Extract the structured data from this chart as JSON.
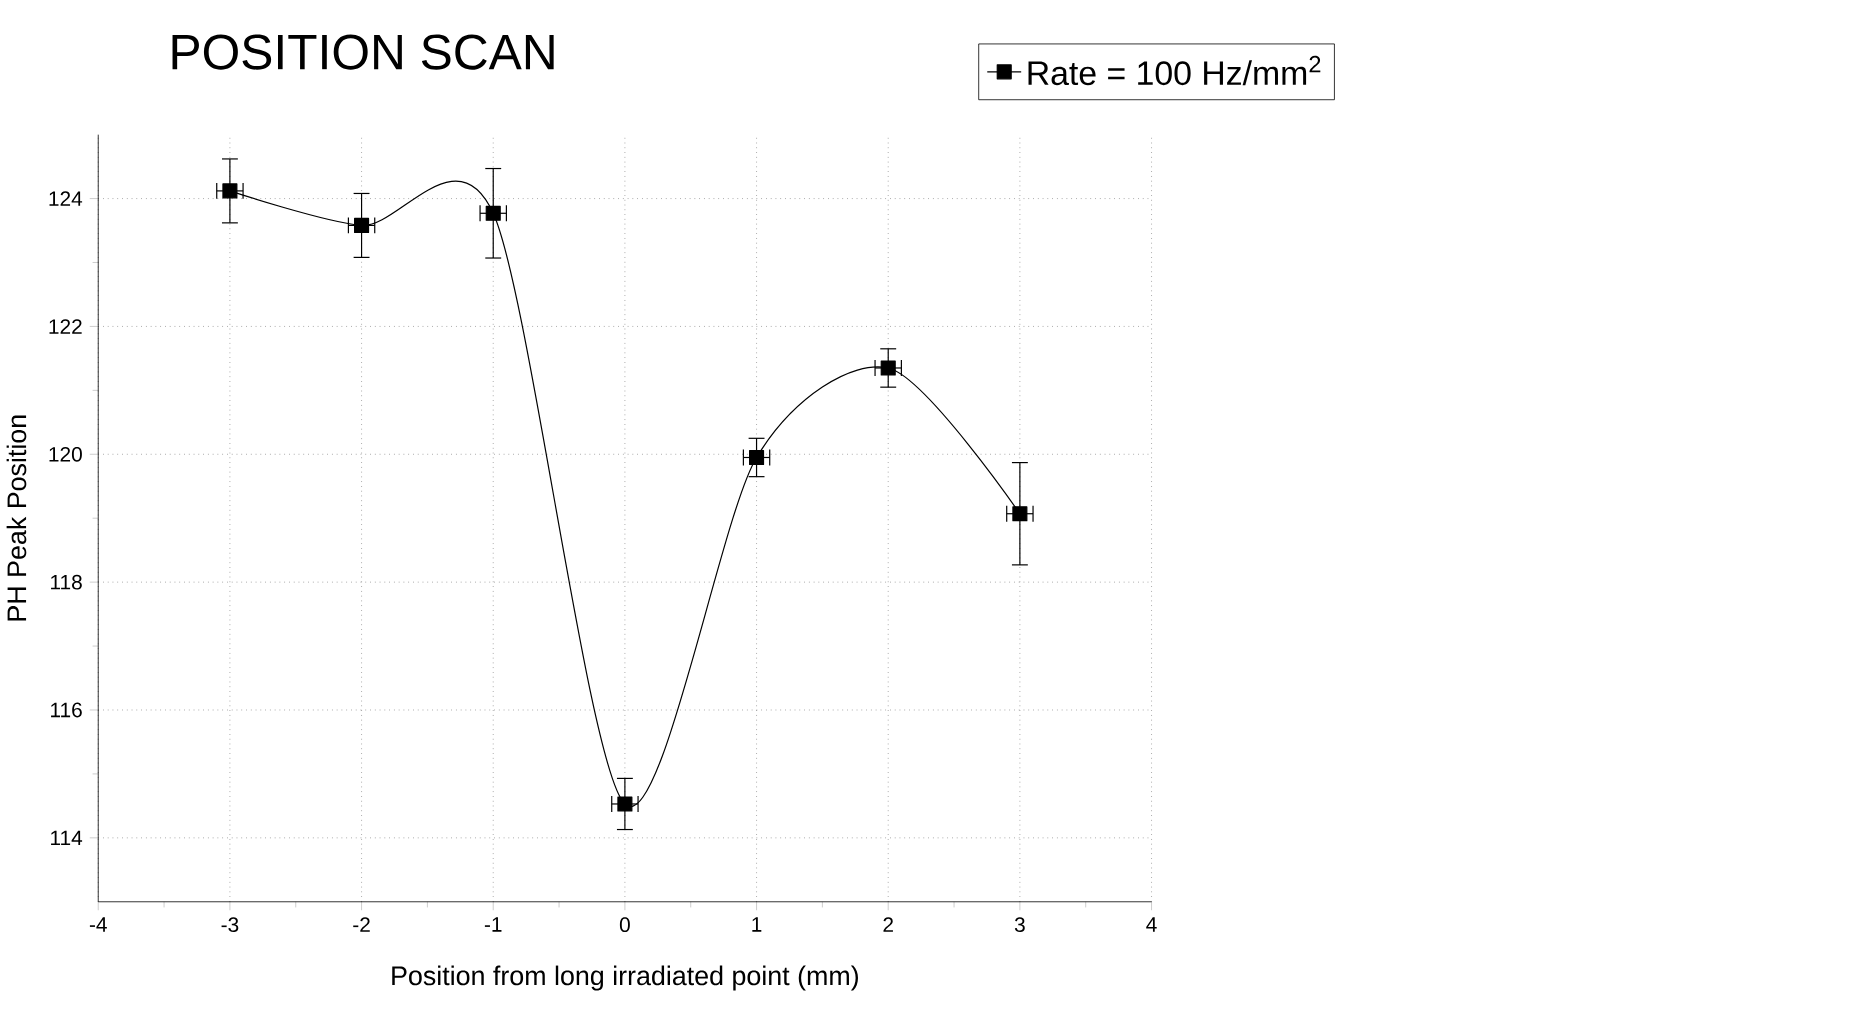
{
  "chart_data": {
    "type": "line",
    "title": "POSITION SCAN",
    "xlabel": "Position from long irradiated point (mm)",
    "ylabel": "PH Peak Position",
    "x": [
      -3,
      -2,
      -1,
      0,
      1,
      2,
      3
    ],
    "series": [
      {
        "name": "Rate = 100 Hz/mm$^{2}$",
        "color": "#000000",
        "values": [
          124.12,
          123.58,
          123.77,
          114.53,
          119.95,
          121.35,
          119.07
        ],
        "errors": [
          0.5,
          0.5,
          0.7,
          0.4,
          0.3,
          0.3,
          0.8
        ],
        "xerrors": [
          0.1,
          0.1,
          0.1,
          0.1,
          0.1,
          0.1,
          0.1
        ]
      }
    ],
    "xlim": [
      -4,
      4
    ],
    "xticks": [
      -4,
      -3,
      -2,
      -1,
      0,
      1,
      2,
      3,
      4
    ],
    "ylim": [
      113,
      125
    ],
    "yticks": [
      114,
      116,
      118,
      120,
      122,
      124
    ],
    "grid": true,
    "legend": "top right",
    "marker": "square",
    "line_style": "solid"
  }
}
